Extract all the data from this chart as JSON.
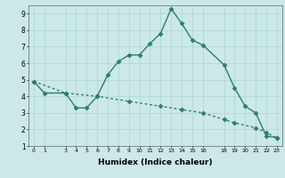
{
  "xlabel": "Humidex (Indice chaleur)",
  "background_color": "#cce8e8",
  "line_color": "#2e7d6e",
  "xlim": [
    -0.5,
    23.5
  ],
  "ylim": [
    1,
    9.5
  ],
  "xticks": [
    0,
    1,
    3,
    4,
    5,
    6,
    7,
    8,
    9,
    10,
    11,
    12,
    13,
    14,
    15,
    16,
    18,
    19,
    20,
    21,
    22,
    23
  ],
  "yticks": [
    1,
    2,
    3,
    4,
    5,
    6,
    7,
    8,
    9
  ],
  "series1_x": [
    0,
    1,
    3,
    4,
    5,
    6,
    7,
    8,
    9,
    10,
    11,
    12,
    13,
    14,
    15,
    16,
    18,
    19,
    20,
    21,
    22,
    23
  ],
  "series1_y": [
    4.9,
    4.2,
    4.2,
    3.3,
    3.3,
    4.0,
    5.3,
    6.1,
    6.5,
    6.5,
    7.2,
    7.8,
    9.3,
    8.4,
    7.4,
    7.1,
    5.9,
    4.5,
    3.4,
    3.0,
    1.6,
    1.5
  ],
  "series2_x": [
    0,
    3,
    6,
    9,
    12,
    14,
    16,
    18,
    19,
    21,
    22,
    23
  ],
  "series2_y": [
    4.9,
    4.2,
    4.0,
    3.7,
    3.4,
    3.2,
    3.0,
    2.6,
    2.4,
    2.1,
    1.8,
    1.5
  ],
  "grid_color": "#aad4d4",
  "marker": "D",
  "marker_size": 2.5,
  "linewidth": 1.0
}
